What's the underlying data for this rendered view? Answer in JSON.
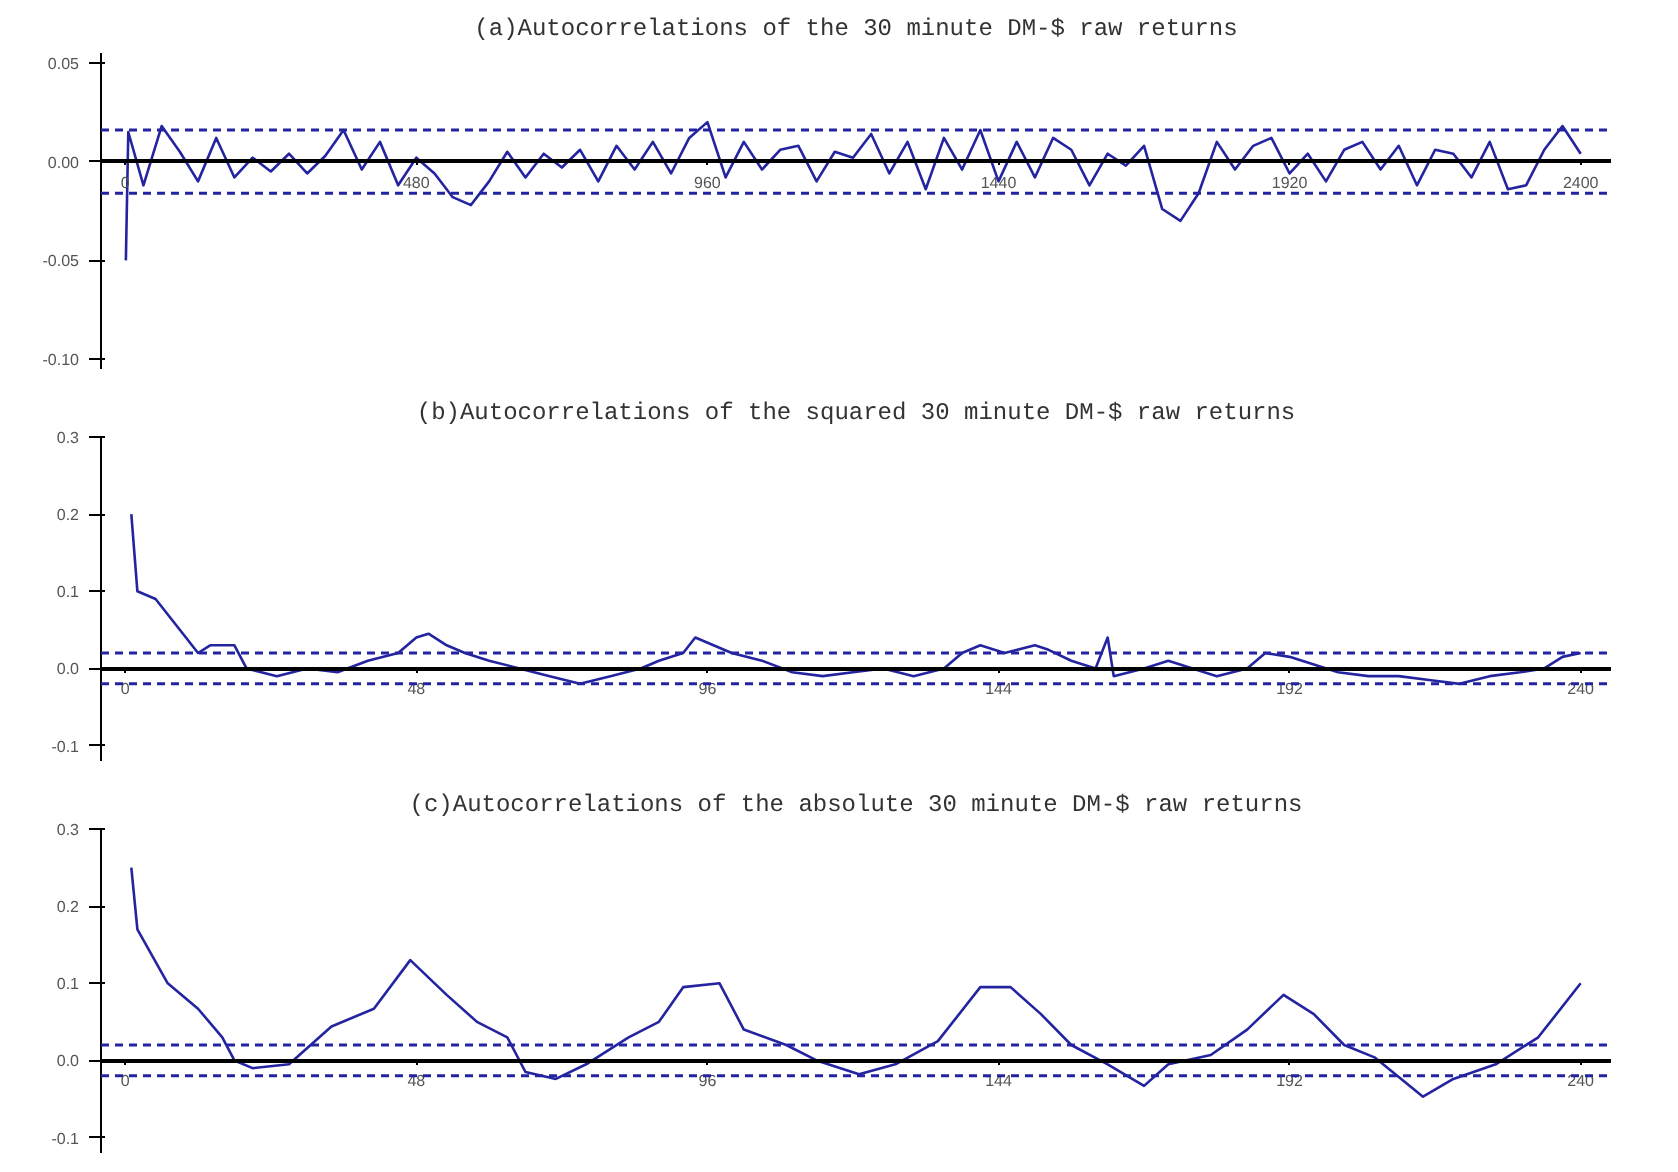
{
  "chart_data": [
    {
      "type": "line",
      "title": "(a)Autocorrelations of the 30 minute DM-$ raw returns",
      "color": "#2424a0",
      "grid": false,
      "x": [
        1,
        5,
        30,
        60,
        90,
        120,
        150,
        180,
        210,
        240,
        270,
        300,
        330,
        360,
        390,
        420,
        450,
        480,
        510,
        540,
        570,
        600,
        630,
        660,
        690,
        720,
        750,
        780,
        810,
        840,
        870,
        900,
        930,
        960,
        990,
        1020,
        1050,
        1080,
        1110,
        1140,
        1170,
        1200,
        1230,
        1260,
        1290,
        1320,
        1350,
        1380,
        1410,
        1440,
        1470,
        1500,
        1530,
        1560,
        1590,
        1620,
        1650,
        1680,
        1710,
        1740,
        1770,
        1800,
        1830,
        1860,
        1890,
        1920,
        1950,
        1980,
        2010,
        2040,
        2070,
        2100,
        2130,
        2160,
        2190,
        2220,
        2250,
        2280,
        2310,
        2340,
        2370,
        2400
      ],
      "values": [
        -0.05,
        0.015,
        -0.012,
        0.018,
        0.005,
        -0.01,
        0.012,
        -0.008,
        0.002,
        -0.005,
        0.004,
        -0.006,
        0.003,
        0.016,
        -0.004,
        0.01,
        -0.012,
        0.002,
        -0.006,
        -0.018,
        -0.022,
        -0.01,
        0.005,
        -0.008,
        0.004,
        -0.003,
        0.006,
        -0.01,
        0.008,
        -0.004,
        0.01,
        -0.006,
        0.012,
        0.02,
        -0.008,
        0.01,
        -0.004,
        0.006,
        0.008,
        -0.01,
        0.005,
        0.002,
        0.014,
        -0.006,
        0.01,
        -0.014,
        0.012,
        -0.004,
        0.016,
        -0.01,
        0.01,
        -0.008,
        0.012,
        0.006,
        -0.012,
        0.004,
        -0.002,
        0.008,
        -0.024,
        -0.03,
        -0.016,
        0.01,
        -0.004,
        0.008,
        0.012,
        -0.006,
        0.004,
        -0.01,
        0.006,
        0.01,
        -0.004,
        0.008,
        -0.012,
        0.006,
        0.004,
        -0.008,
        0.01,
        -0.014,
        -0.012,
        0.006,
        0.018,
        0.004
      ],
      "xlim": [
        -40,
        2450
      ],
      "xticks": [
        0,
        480,
        960,
        1440,
        1920,
        2400
      ],
      "ylim": [
        -0.105,
        0.055
      ],
      "yticks": [
        {
          "value": 0.05,
          "label": "0.05"
        },
        {
          "value": 0,
          "label": "0.00"
        },
        {
          "value": -0.05,
          "label": "-0.05"
        },
        {
          "value": -0.1,
          "label": "-0.10"
        }
      ],
      "ref_lines": [
        {
          "axis": "y",
          "value": 0.016,
          "color": "#2424a0",
          "line_style": "dashed"
        },
        {
          "axis": "y",
          "value": -0.016,
          "color": "#2424a0",
          "line_style": "dashed"
        }
      ]
    },
    {
      "type": "line",
      "title": "(b)Autocorrelations of the squared 30 minute DM-$ raw returns",
      "color": "#2424a0",
      "grid": false,
      "x": [
        1,
        2,
        5,
        10,
        12,
        14,
        18,
        20,
        25,
        30,
        35,
        40,
        45,
        48,
        50,
        53,
        56,
        60,
        65,
        70,
        75,
        80,
        85,
        88,
        92,
        94,
        97,
        100,
        105,
        110,
        115,
        120,
        125,
        130,
        135,
        138,
        141,
        145,
        150,
        152,
        156,
        160,
        162,
        163,
        168,
        172,
        176,
        180,
        185,
        188,
        192,
        196,
        200,
        205,
        210,
        215,
        220,
        225,
        230,
        234,
        237,
        240
      ],
      "values": [
        0.2,
        0.1,
        0.09,
        0.04,
        0.02,
        0.03,
        0.03,
        0.0,
        -0.01,
        0.0,
        -0.005,
        0.01,
        0.02,
        0.04,
        0.045,
        0.03,
        0.02,
        0.01,
        0.0,
        -0.01,
        -0.02,
        -0.01,
        0.0,
        0.01,
        0.02,
        0.04,
        0.03,
        0.02,
        0.01,
        -0.005,
        -0.01,
        -0.005,
        0.0,
        -0.01,
        0.0,
        0.02,
        0.03,
        0.02,
        0.03,
        0.025,
        0.01,
        0.0,
        0.04,
        -0.01,
        0.0,
        0.01,
        0.0,
        -0.01,
        0.0,
        0.02,
        0.015,
        0.005,
        -0.005,
        -0.01,
        -0.01,
        -0.015,
        -0.02,
        -0.01,
        -0.005,
        0.0,
        0.015,
        0.02
      ],
      "xlim": [
        -4,
        245
      ],
      "xticks": [
        0,
        48,
        96,
        144,
        192,
        240
      ],
      "ylim": [
        -0.12,
        0.3
      ],
      "yticks": [
        {
          "value": 0.3,
          "label": "0.3"
        },
        {
          "value": 0.2,
          "label": "0.2"
        },
        {
          "value": 0.1,
          "label": "0.1"
        },
        {
          "value": 0,
          "label": "0.0"
        },
        {
          "value": -0.1,
          "label": "-0.1"
        }
      ],
      "ref_lines": [
        {
          "axis": "y",
          "value": 0.02,
          "color": "#2424a0",
          "line_style": "dashed"
        },
        {
          "axis": "y",
          "value": -0.02,
          "color": "#2424a0",
          "line_style": "dashed"
        }
      ]
    },
    {
      "type": "line",
      "title": "(c)Autocorrelations of the absolute 30 minute DM-$ raw returns",
      "color": "#2424a0",
      "grid": false,
      "x": [
        1,
        2,
        7,
        12,
        16,
        18,
        21,
        27,
        34,
        41,
        47,
        53,
        58,
        63,
        66,
        71,
        76,
        83,
        88,
        92,
        98,
        102,
        109,
        114,
        121,
        127,
        134,
        141,
        146,
        151,
        156,
        162,
        168,
        172,
        179,
        185,
        191,
        196,
        201,
        206,
        214,
        219,
        226,
        233,
        240
      ],
      "values": [
        0.25,
        0.17,
        0.1,
        0.067,
        0.03,
        0.0,
        -0.01,
        -0.005,
        0.044,
        0.067,
        0.13,
        0.085,
        0.05,
        0.03,
        -0.015,
        -0.024,
        -0.005,
        0.03,
        0.05,
        0.095,
        0.1,
        0.04,
        0.02,
        0.0,
        -0.018,
        -0.005,
        0.025,
        0.095,
        0.095,
        0.06,
        0.02,
        -0.005,
        -0.033,
        -0.005,
        0.007,
        0.04,
        0.085,
        0.06,
        0.02,
        0.004,
        -0.047,
        -0.024,
        -0.005,
        0.03,
        0.1
      ],
      "xlim": [
        -4,
        245
      ],
      "xticks": [
        0,
        48,
        96,
        144,
        192,
        240
      ],
      "ylim": [
        -0.12,
        0.3
      ],
      "yticks": [
        {
          "value": 0.3,
          "label": "0.3"
        },
        {
          "value": 0.2,
          "label": "0.2"
        },
        {
          "value": 0.1,
          "label": "0.1"
        },
        {
          "value": 0,
          "label": "0.0"
        },
        {
          "value": -0.1,
          "label": "-0.1"
        }
      ],
      "ref_lines": [
        {
          "axis": "y",
          "value": 0.02,
          "color": "#2424a0",
          "line_style": "dashed"
        },
        {
          "axis": "y",
          "value": -0.02,
          "color": "#2424a0",
          "line_style": "dashed"
        }
      ]
    }
  ]
}
